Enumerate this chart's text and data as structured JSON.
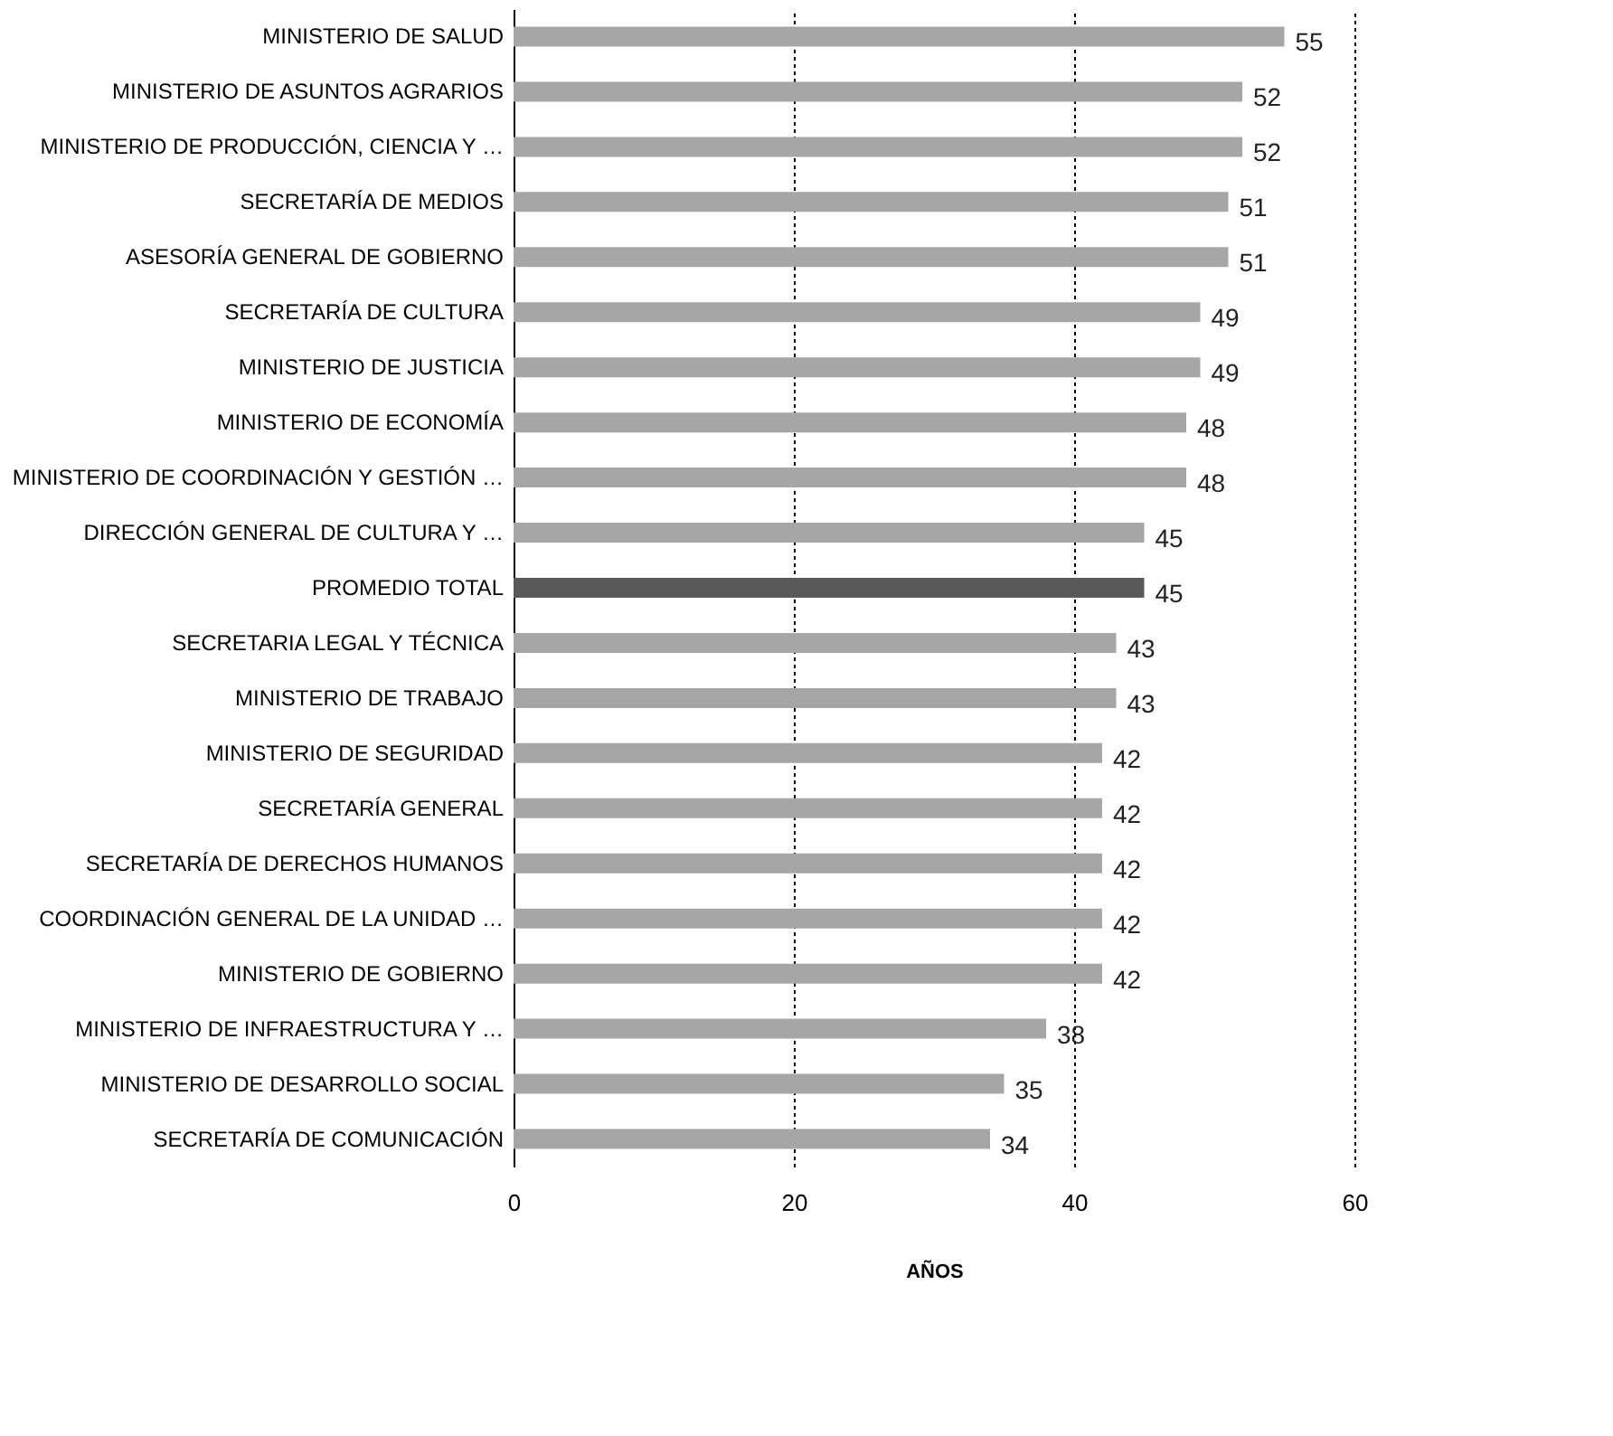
{
  "chart_data": {
    "type": "bar",
    "orientation": "horizontal",
    "xlabel": "AÑOS",
    "categories": [
      "MINISTERIO DE SALUD",
      "MINISTERIO DE ASUNTOS AGRARIOS",
      "MINISTERIO DE PRODUCCIÓN, CIENCIA Y …",
      "SECRETARÍA DE MEDIOS",
      "ASESORÍA GENERAL DE GOBIERNO",
      "SECRETARÍA DE CULTURA",
      "MINISTERIO DE JUSTICIA",
      "MINISTERIO DE ECONOMÍA",
      "MINISTERIO DE COORDINACIÓN Y GESTIÓN …",
      "DIRECCIÓN GENERAL DE CULTURA Y …",
      "PROMEDIO TOTAL",
      "SECRETARIA LEGAL Y TÉCNICA",
      "MINISTERIO DE TRABAJO",
      "MINISTERIO DE SEGURIDAD",
      "SECRETARÍA GENERAL",
      "SECRETARÍA DE DERECHOS HUMANOS",
      "COORDINACIÓN GENERAL DE LA UNIDAD …",
      "MINISTERIO DE GOBIERNO",
      "MINISTERIO DE INFRAESTRUCTURA Y …",
      "MINISTERIO DE DESARROLLO SOCIAL",
      "SECRETARÍA DE COMUNICACIÓN"
    ],
    "values": [
      55,
      52,
      52,
      51,
      51,
      49,
      49,
      48,
      48,
      45,
      45,
      43,
      43,
      42,
      42,
      42,
      42,
      42,
      38,
      35,
      34
    ],
    "colors": [
      "#a6a6a6",
      "#a6a6a6",
      "#a6a6a6",
      "#a6a6a6",
      "#a6a6a6",
      "#a6a6a6",
      "#a6a6a6",
      "#a6a6a6",
      "#a6a6a6",
      "#a6a6a6",
      "#595959",
      "#a6a6a6",
      "#a6a6a6",
      "#a6a6a6",
      "#a6a6a6",
      "#a6a6a6",
      "#a6a6a6",
      "#a6a6a6",
      "#a6a6a6",
      "#a6a6a6",
      "#a6a6a6"
    ],
    "xlim": [
      0,
      60
    ],
    "xticks": [
      0,
      20,
      40,
      60
    ],
    "grid": "x",
    "data_labels": true
  }
}
